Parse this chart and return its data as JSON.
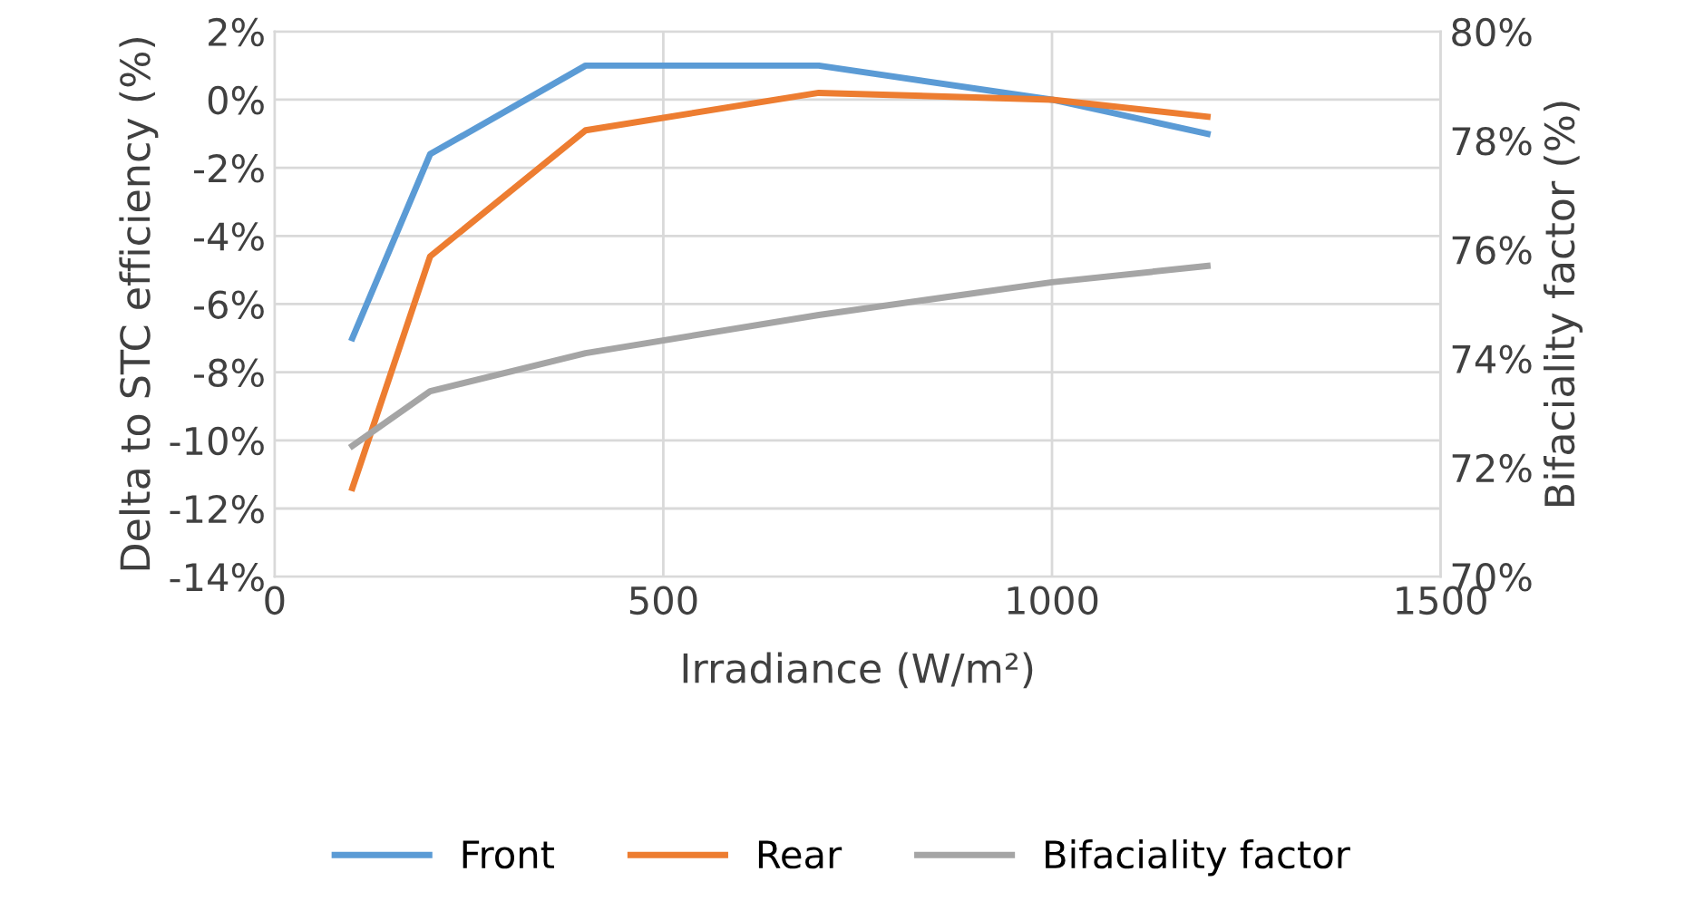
{
  "chart_data": {
    "type": "line",
    "xlabel": "Irradiance (W/m²)",
    "ylabel": "Delta to STC efficiency (%)",
    "y2label": "Bifaciality factor (%)",
    "x": [
      100,
      200,
      400,
      700,
      1000,
      1200
    ],
    "xlim": [
      0,
      1500
    ],
    "xticks": [
      0,
      500,
      1000,
      1500
    ],
    "ylim": [
      -14,
      2
    ],
    "yticks": [
      {
        "value": -14,
        "label": "-14%"
      },
      {
        "value": -12,
        "label": "-12%"
      },
      {
        "value": -10,
        "label": "-10%"
      },
      {
        "value": -8,
        "label": "-8%"
      },
      {
        "value": -6,
        "label": "-6%"
      },
      {
        "value": -4,
        "label": "-4%"
      },
      {
        "value": -2,
        "label": "-2%"
      },
      {
        "value": 0,
        "label": "0%"
      },
      {
        "value": 2,
        "label": "2%"
      }
    ],
    "y2lim": [
      70,
      80
    ],
    "y2ticks": [
      {
        "value": 70,
        "label": "70%"
      },
      {
        "value": 72,
        "label": "72%"
      },
      {
        "value": 74,
        "label": "74%"
      },
      {
        "value": 76,
        "label": "76%"
      },
      {
        "value": 78,
        "label": "78%"
      },
      {
        "value": 80,
        "label": "80%"
      }
    ],
    "series": [
      {
        "name": "Front",
        "color": "#5b9bd5",
        "values": [
          -7.0,
          -1.6,
          1.0,
          1.0,
          0.0,
          -1.0
        ]
      },
      {
        "name": "Rear",
        "color": "#ed7d31",
        "values": [
          -11.4,
          -4.6,
          -0.9,
          0.2,
          0.0,
          -0.5
        ]
      },
      {
        "name": "Bifaciality factor",
        "color": "#a5a5a5",
        "axis": "y2",
        "values": [
          72.4,
          73.4,
          74.1,
          74.8,
          75.4,
          75.7
        ]
      }
    ],
    "grid": true,
    "legend": "bottom"
  }
}
